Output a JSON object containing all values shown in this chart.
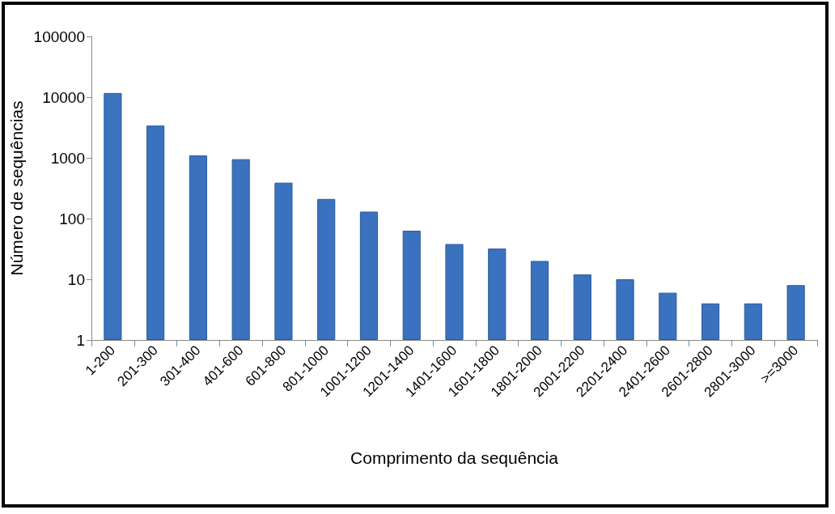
{
  "chart_data": {
    "type": "bar",
    "xlabel": "Comprimento da sequência",
    "ylabel": "Número de sequências",
    "categories": [
      "1-200",
      "201-300",
      "301-400",
      "401-600",
      "601-800",
      "801-1000",
      "1001-1200",
      "1201-1400",
      "1401-1600",
      "1601-1800",
      "1801-2000",
      "2001-2200",
      "2201-2400",
      "2401-2600",
      "2601-2800",
      "2801-3000",
      ">=3000"
    ],
    "values": [
      11700,
      3400,
      1100,
      950,
      390,
      210,
      130,
      63,
      38,
      32,
      20,
      12,
      10,
      6,
      4,
      4,
      8
    ],
    "color": "#3a72c0",
    "log": true,
    "ylim": [
      1,
      100000
    ],
    "yticks": [
      1,
      10,
      100,
      1000,
      10000,
      100000
    ],
    "grid": false
  }
}
